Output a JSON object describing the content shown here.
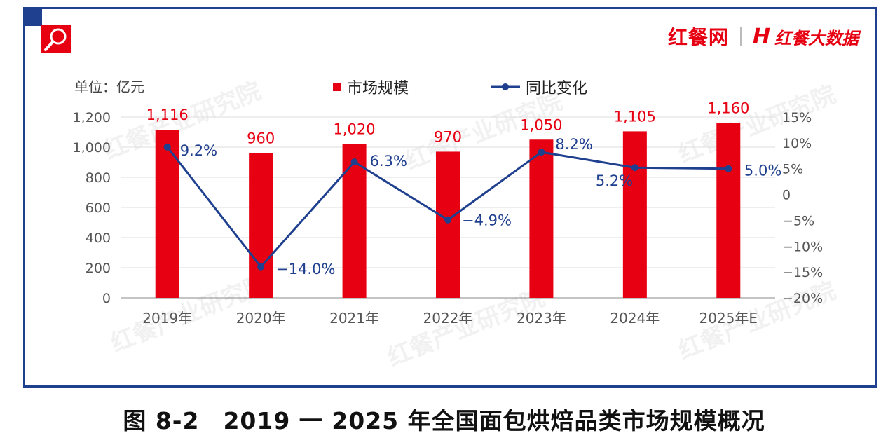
{
  "header": {
    "brand_primary": "红餐网",
    "brand_logo": "H",
    "brand_secondary": "红餐大数据",
    "icon": "magnifier-icon"
  },
  "unit_label": "单位：亿元",
  "watermark_text": "红餐产业研究院",
  "caption": "图 8-2　2019 一 2025 年全国面包烘焙品类市场规模概况",
  "colors": {
    "bar": "#e60012",
    "line": "#1f3f8f",
    "frame": "#1f3f8f",
    "axis_text": "#555555"
  },
  "chart_data": {
    "type": "bar",
    "categories": [
      "2019年",
      "2020年",
      "2021年",
      "2022年",
      "2023年",
      "2024年",
      "2025年E"
    ],
    "series": [
      {
        "name": "市场规模",
        "type": "bar",
        "axis": "left",
        "values": [
          1116,
          960,
          1020,
          970,
          1050,
          1105,
          1160
        ],
        "labels": [
          "1,116",
          "960",
          "1,020",
          "970",
          "1,050",
          "1,105",
          "1,160"
        ]
      },
      {
        "name": "同比变化",
        "type": "line",
        "axis": "right",
        "values": [
          9.2,
          -14.0,
          6.3,
          -4.9,
          8.2,
          5.2,
          5.0
        ],
        "labels": [
          "9.2%",
          "−14.0%",
          "6.3%",
          "−4.9%",
          "8.2%",
          "5.2%",
          "5.0%"
        ]
      }
    ],
    "y_left": {
      "ylim": [
        0,
        1200
      ],
      "ticks": [
        0,
        200,
        400,
        600,
        800,
        1000,
        1200
      ],
      "tick_labels": [
        "0",
        "200",
        "400",
        "600",
        "800",
        "1,000",
        "1,200"
      ]
    },
    "y_right": {
      "ylim": [
        -20,
        15
      ],
      "ticks": [
        -20,
        -15,
        -10,
        -5,
        0,
        5,
        10,
        15
      ],
      "tick_labels": [
        "−20%",
        "−15%",
        "−10%",
        "−5%",
        "0",
        "5%",
        "10%",
        "15%"
      ]
    },
    "grid": true,
    "legend": "top"
  }
}
